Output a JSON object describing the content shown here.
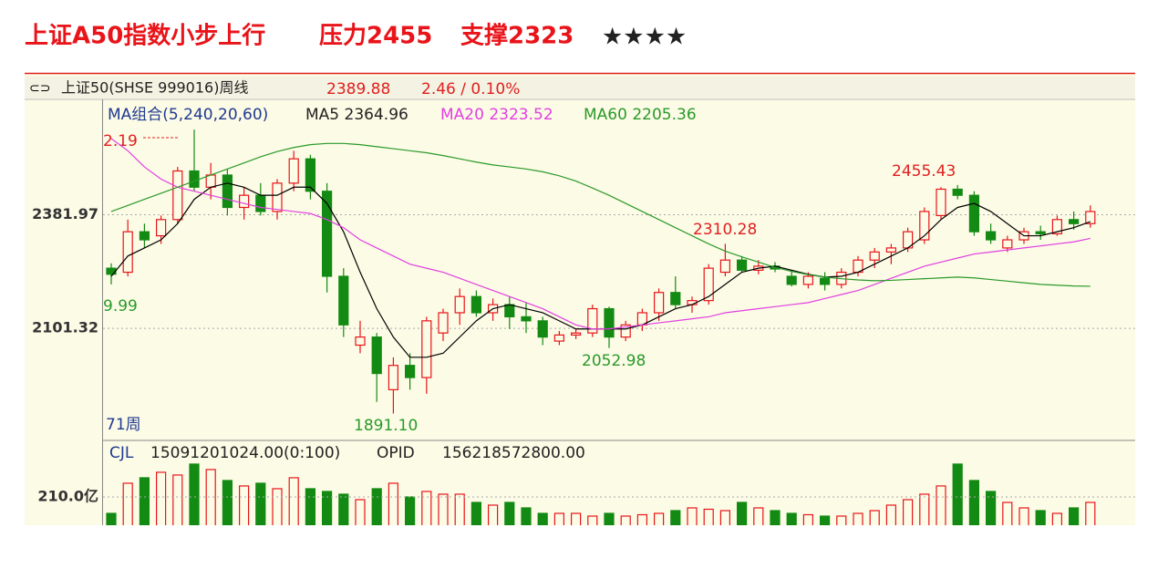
{
  "chart_data": {
    "type": "candlestick",
    "title": "上证A50指数小步上行",
    "resistance": "压力2455",
    "support": "支撑2323",
    "rating": "★★★★",
    "instrument": "上证50(SHSE 999016)周线",
    "change": "2.46 / 0.10%",
    "indicator": "MA组合(5,240,20,60)",
    "period": "71周",
    "annotations": [
      "2.19",
      "9.99",
      "2310.28",
      "2455.43",
      "2052.98",
      "1891.10"
    ],
    "ylim": [
      1827,
      2660
    ],
    "yticks": [
      2381.97,
      2101.32
    ],
    "grid": true,
    "up_color": "#e8141a",
    "down_color": "#138a13",
    "ohlc": [
      [
        2250,
        2262,
        2209.99,
        2235
      ],
      [
        2240,
        2370,
        2230,
        2340
      ],
      [
        2340,
        2360,
        2300,
        2320
      ],
      [
        2330,
        2380,
        2310,
        2370
      ],
      [
        2370,
        2500,
        2360,
        2490
      ],
      [
        2490,
        2592.19,
        2440,
        2450
      ],
      [
        2450,
        2510,
        2420,
        2480
      ],
      [
        2480,
        2495,
        2380,
        2400
      ],
      [
        2400,
        2450,
        2370,
        2430
      ],
      [
        2430,
        2460,
        2380,
        2390
      ],
      [
        2390,
        2470,
        2370,
        2460
      ],
      [
        2460,
        2540,
        2440,
        2520
      ],
      [
        2520,
        2530,
        2420,
        2440
      ],
      [
        2440,
        2460,
        2190,
        2230
      ],
      [
        2230,
        2250,
        2080,
        2110
      ],
      [
        2060,
        2120,
        2040,
        2080
      ],
      [
        2080,
        2090,
        1920,
        1990
      ],
      [
        1950,
        2030,
        1891.1,
        2010
      ],
      [
        2010,
        2040,
        1950,
        1980
      ],
      [
        1980,
        2130,
        1940,
        2120
      ],
      [
        2090,
        2150,
        2070,
        2140
      ],
      [
        2140,
        2200,
        2110,
        2180
      ],
      [
        2180,
        2195,
        2130,
        2140
      ],
      [
        2140,
        2175,
        2120,
        2160
      ],
      [
        2160,
        2180,
        2100,
        2130
      ],
      [
        2130,
        2165,
        2090,
        2120
      ],
      [
        2120,
        2130,
        2060,
        2080
      ],
      [
        2070,
        2095,
        2060,
        2085
      ],
      [
        2085,
        2100,
        2075,
        2090
      ],
      [
        2090,
        2160,
        2080,
        2150
      ],
      [
        2150,
        2155,
        2052.98,
        2080
      ],
      [
        2080,
        2120,
        2070,
        2110
      ],
      [
        2110,
        2150,
        2095,
        2140
      ],
      [
        2140,
        2200,
        2120,
        2190
      ],
      [
        2190,
        2230,
        2150,
        2160
      ],
      [
        2160,
        2180,
        2140,
        2170
      ],
      [
        2170,
        2260,
        2160,
        2250
      ],
      [
        2240,
        2310.28,
        2230,
        2270
      ],
      [
        2270,
        2280,
        2240,
        2245
      ],
      [
        2245,
        2270,
        2235,
        2255
      ],
      [
        2255,
        2265,
        2240,
        2248
      ],
      [
        2230,
        2245,
        2205,
        2210
      ],
      [
        2210,
        2240,
        2200,
        2230
      ],
      [
        2225,
        2240,
        2195,
        2210
      ],
      [
        2210,
        2250,
        2200,
        2240
      ],
      [
        2240,
        2280,
        2230,
        2270
      ],
      [
        2270,
        2300,
        2250,
        2290
      ],
      [
        2290,
        2310,
        2260,
        2300
      ],
      [
        2300,
        2350,
        2290,
        2340
      ],
      [
        2320,
        2400,
        2310,
        2390
      ],
      [
        2380,
        2450,
        2370,
        2445
      ],
      [
        2445,
        2455.43,
        2420,
        2430
      ],
      [
        2430,
        2440,
        2330,
        2340
      ],
      [
        2340,
        2360,
        2310,
        2320
      ],
      [
        2300,
        2330,
        2290,
        2320
      ],
      [
        2320,
        2350,
        2310,
        2340
      ],
      [
        2340,
        2355,
        2320,
        2335
      ],
      [
        2335,
        2380,
        2330,
        2370
      ],
      [
        2370,
        2390,
        2345,
        2360
      ],
      [
        2360,
        2405,
        2350,
        2389.88
      ]
    ],
    "series": [
      {
        "name": "MA5",
        "color": "#000000",
        "values": [
          2230,
          2280,
          2300,
          2320,
          2360,
          2420,
          2450,
          2460,
          2450,
          2430,
          2430,
          2450,
          2450,
          2410,
          2340,
          2240,
          2150,
          2080,
          2030,
          2030,
          2040,
          2080,
          2120,
          2150,
          2160,
          2150,
          2140,
          2120,
          2100,
          2100,
          2100,
          2100,
          2110,
          2130,
          2150,
          2160,
          2180,
          2210,
          2240,
          2250,
          2255,
          2245,
          2235,
          2228,
          2230,
          2240,
          2260,
          2280,
          2300,
          2330,
          2370,
          2400,
          2410,
          2390,
          2360,
          2330,
          2330,
          2340,
          2350,
          2364.96
        ]
      },
      {
        "name": "MA20",
        "color": "#e040e0",
        "values": [
          2570,
          2540,
          2500,
          2470,
          2450,
          2440,
          2430,
          2420,
          2410,
          2400,
          2395,
          2390,
          2385,
          2370,
          2350,
          2320,
          2300,
          2280,
          2260,
          2250,
          2240,
          2225,
          2210,
          2195,
          2180,
          2165,
          2150,
          2130,
          2110,
          2100,
          2100,
          2105,
          2110,
          2115,
          2120,
          2125,
          2130,
          2140,
          2145,
          2150,
          2155,
          2160,
          2165,
          2175,
          2185,
          2195,
          2210,
          2225,
          2240,
          2255,
          2265,
          2275,
          2285,
          2290,
          2295,
          2300,
          2305,
          2310,
          2315,
          2323.52
        ]
      },
      {
        "name": "MA60",
        "color": "#2a9a2a",
        "values": [
          2390,
          2405,
          2420,
          2435,
          2450,
          2465,
          2480,
          2495,
          2510,
          2525,
          2538,
          2548,
          2555,
          2558,
          2558,
          2555,
          2550,
          2545,
          2540,
          2535,
          2528,
          2520,
          2512,
          2505,
          2500,
          2495,
          2488,
          2478,
          2465,
          2448,
          2430,
          2410,
          2390,
          2370,
          2350,
          2330,
          2310,
          2292,
          2278,
          2265,
          2252,
          2242,
          2234,
          2228,
          2224,
          2221,
          2219,
          2220,
          2222,
          2224,
          2226,
          2228,
          2226,
          2222,
          2218,
          2214,
          2210,
          2208,
          2206,
          2205.36
        ]
      }
    ],
    "volume": {
      "label": "CJL",
      "value_text": "15091201024.00(0:100)",
      "opid_label": "OPID",
      "opid_text": "156218572800.00",
      "ylim": [
        110,
        393
      ],
      "yticks": [
        {
          "value": 210,
          "label": "210.0亿"
        }
      ],
      "values": [
        150,
        260,
        280,
        300,
        290,
        330,
        310,
        270,
        250,
        260,
        240,
        280,
        240,
        230,
        220,
        200,
        240,
        260,
        210,
        230,
        220,
        220,
        190,
        180,
        190,
        170,
        150,
        150,
        150,
        140,
        150,
        140,
        145,
        150,
        160,
        170,
        165,
        160,
        190,
        170,
        160,
        150,
        145,
        140,
        140,
        150,
        160,
        180,
        200,
        220,
        250,
        330,
        270,
        230,
        190,
        170,
        160,
        150,
        170,
        190
      ]
    }
  }
}
